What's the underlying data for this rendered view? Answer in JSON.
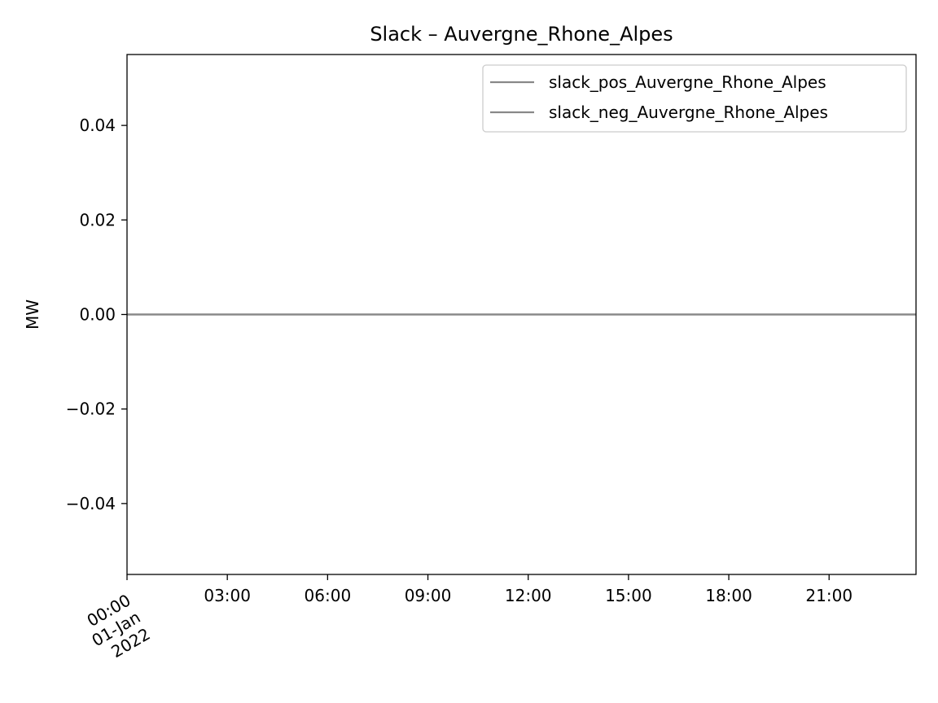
{
  "chart_data": {
    "type": "line",
    "title": "Slack – Auvergne_Rhone_Alpes",
    "xlabel": "",
    "ylabel": "MW",
    "x_ticks": [
      {
        "hour": 0,
        "lines": [
          "00:00",
          "01-Jan",
          "2022"
        ]
      },
      {
        "hour": 3,
        "lines": [
          "03:00"
        ]
      },
      {
        "hour": 6,
        "lines": [
          "06:00"
        ]
      },
      {
        "hour": 9,
        "lines": [
          "09:00"
        ]
      },
      {
        "hour": 12,
        "lines": [
          "12:00"
        ]
      },
      {
        "hour": 15,
        "lines": [
          "15:00"
        ]
      },
      {
        "hour": 18,
        "lines": [
          "18:00"
        ]
      },
      {
        "hour": 21,
        "lines": [
          "21:00"
        ]
      }
    ],
    "xlim_hours": [
      0,
      23.6
    ],
    "y_ticks": [
      {
        "value": 0.04,
        "label": "0.04"
      },
      {
        "value": 0.02,
        "label": "0.02"
      },
      {
        "value": 0.0,
        "label": "0.00"
      },
      {
        "value": -0.02,
        "label": "−0.02"
      },
      {
        "value": -0.04,
        "label": "−0.04"
      }
    ],
    "ylim": [
      -0.055,
      0.055
    ],
    "grid": false,
    "legend_position": "top-right",
    "series": [
      {
        "name": "slack_pos_Auvergne_Rhone_Alpes",
        "color": "#888888",
        "x_hours": [
          0,
          23.6
        ],
        "values": [
          0,
          0
        ]
      },
      {
        "name": "slack_neg_Auvergne_Rhone_Alpes",
        "color": "#888888",
        "x_hours": [
          0,
          23.6
        ],
        "values": [
          0,
          0
        ]
      }
    ]
  }
}
